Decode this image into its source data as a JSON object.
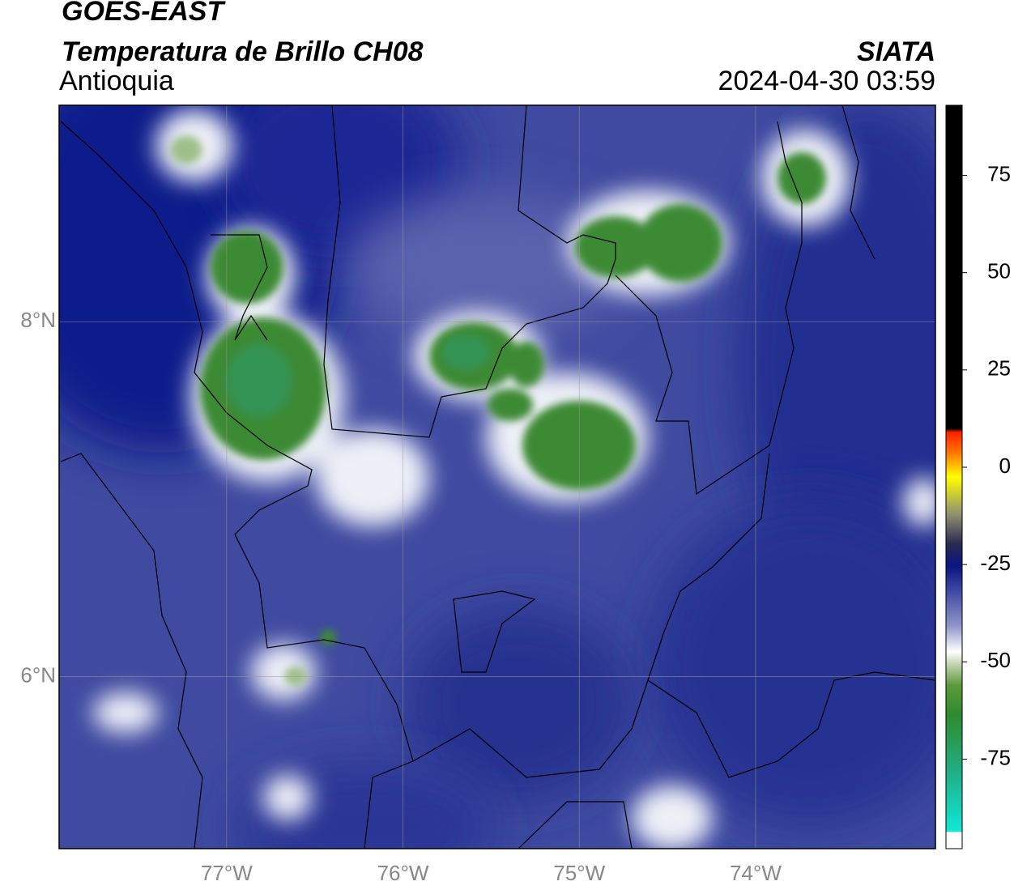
{
  "header": {
    "satellite": "GOES-EAST",
    "title": "Temperatura de Brillo CH08",
    "region": "Antioquia",
    "source": "SIATA",
    "datetime": "2024-04-30 03:59"
  },
  "map": {
    "xlim": [
      -77.95,
      -72.98
    ],
    "ylim": [
      5.03,
      9.22
    ],
    "xticks": [
      {
        "value": -77,
        "label": "77°W"
      },
      {
        "value": -76,
        "label": "76°W"
      },
      {
        "value": -75,
        "label": "75°W"
      },
      {
        "value": -74,
        "label": "74°W"
      }
    ],
    "yticks": [
      {
        "value": 6,
        "label": "6°N"
      },
      {
        "value": 8,
        "label": "8°N"
      }
    ],
    "grid": true
  },
  "colorbar": {
    "lim": [
      -98,
      93
    ],
    "ticks": [
      75,
      50,
      25,
      0,
      -25,
      -50,
      -75
    ]
  }
}
